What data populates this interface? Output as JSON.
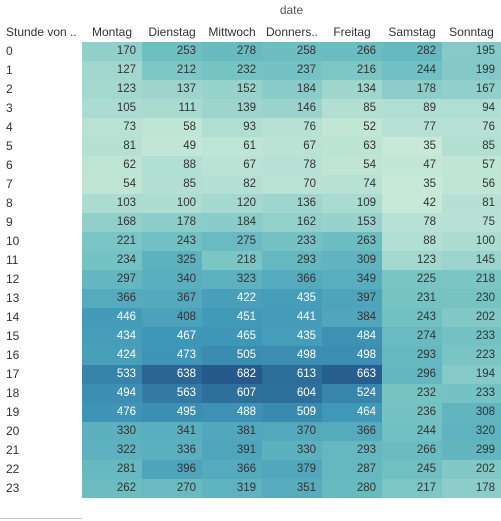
{
  "chart_data": {
    "type": "heatmap",
    "column_title": "date",
    "row_title": "Stunde von ..",
    "columns": [
      "Montag",
      "Dienstag",
      "Mittwoch",
      "Donners..",
      "Freitag",
      "Samstag",
      "Sonntag"
    ],
    "rows": [
      "0",
      "1",
      "2",
      "3",
      "4",
      "5",
      "6",
      "7",
      "8",
      "9",
      "10",
      "11",
      "12",
      "13",
      "14",
      "15",
      "16",
      "17",
      "18",
      "19",
      "20",
      "21",
      "22",
      "23"
    ],
    "values": [
      [
        170,
        253,
        278,
        258,
        266,
        282,
        195
      ],
      [
        127,
        212,
        232,
        237,
        216,
        244,
        199
      ],
      [
        123,
        137,
        152,
        184,
        134,
        178,
        167
      ],
      [
        105,
        111,
        139,
        146,
        85,
        89,
        94
      ],
      [
        73,
        58,
        93,
        76,
        52,
        77,
        76
      ],
      [
        81,
        49,
        61,
        67,
        63,
        35,
        85
      ],
      [
        62,
        88,
        67,
        78,
        54,
        47,
        57
      ],
      [
        54,
        85,
        82,
        70,
        74,
        35,
        56
      ],
      [
        103,
        100,
        120,
        136,
        109,
        42,
        81
      ],
      [
        168,
        178,
        184,
        162,
        153,
        78,
        75
      ],
      [
        221,
        243,
        275,
        233,
        263,
        88,
        100
      ],
      [
        234,
        325,
        218,
        293,
        309,
        123,
        145
      ],
      [
        297,
        340,
        323,
        366,
        349,
        225,
        218
      ],
      [
        366,
        367,
        422,
        435,
        397,
        231,
        230
      ],
      [
        446,
        408,
        451,
        441,
        384,
        243,
        202
      ],
      [
        434,
        467,
        465,
        435,
        484,
        274,
        233
      ],
      [
        424,
        473,
        505,
        498,
        498,
        293,
        223
      ],
      [
        533,
        638,
        682,
        613,
        663,
        296,
        194
      ],
      [
        494,
        563,
        607,
        604,
        524,
        232,
        233
      ],
      [
        476,
        495,
        488,
        509,
        464,
        236,
        308
      ],
      [
        330,
        341,
        381,
        370,
        366,
        244,
        320
      ],
      [
        322,
        336,
        391,
        330,
        293,
        266,
        299
      ],
      [
        281,
        396,
        366,
        379,
        287,
        245,
        202
      ],
      [
        262,
        270,
        319,
        351,
        280,
        217,
        178
      ]
    ],
    "color_low": "#c8e9d8",
    "color_high": "#25598c"
  }
}
